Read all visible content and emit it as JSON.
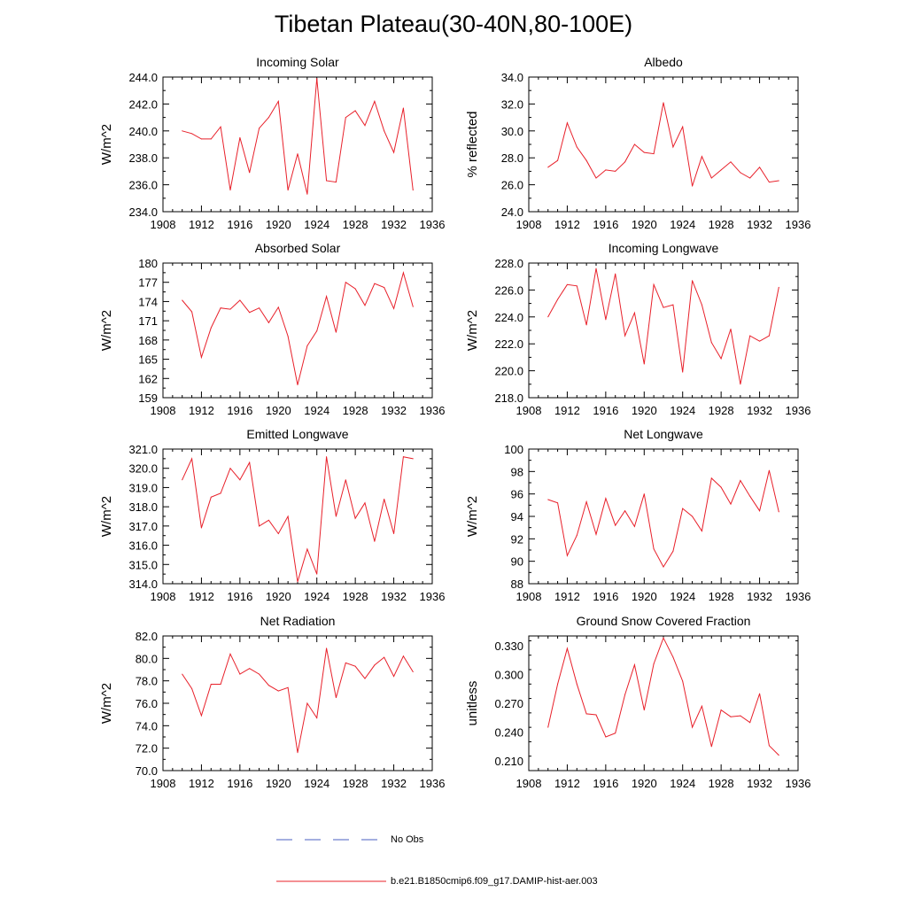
{
  "title": "Tibetan Plateau(30-40N,80-100E)",
  "legend": [
    {
      "label": "No Obs",
      "color": "#4a5fc1",
      "style": "dashed"
    },
    {
      "label": "b.e21.B1850cmip6.f09_g17.DAMIP-hist-aer.003",
      "color": "#e8202a",
      "style": "solid"
    }
  ],
  "chart_data": [
    {
      "type": "line",
      "title": "Incoming Solar",
      "ylabel": "W/m^2",
      "xlim": [
        1908,
        1936
      ],
      "xticks": [
        1908,
        1912,
        1916,
        1920,
        1924,
        1928,
        1932,
        1936
      ],
      "ylim": [
        234.0,
        244.0
      ],
      "yticks": [
        "234.0",
        "236.0",
        "238.0",
        "240.0",
        "242.0",
        "244.0"
      ],
      "x": [
        1910,
        1911,
        1912,
        1913,
        1914,
        1915,
        1916,
        1917,
        1918,
        1919,
        1920,
        1921,
        1922,
        1923,
        1924,
        1925,
        1926,
        1927,
        1928,
        1929,
        1930,
        1931,
        1932,
        1933,
        1934
      ],
      "series": [
        {
          "name": "b.e21.B1850cmip6.f09_g17.DAMIP-hist-aer.003",
          "values": [
            240.0,
            239.8,
            239.4,
            239.4,
            240.3,
            235.6,
            239.5,
            236.9,
            240.2,
            241.0,
            242.2,
            235.6,
            238.3,
            235.3,
            243.9,
            236.3,
            236.2,
            241.0,
            241.5,
            240.4,
            242.2,
            240.0,
            238.4,
            241.7,
            235.6
          ]
        }
      ]
    },
    {
      "type": "line",
      "title": "Albedo",
      "ylabel": "% reflected",
      "xlim": [
        1908,
        1936
      ],
      "xticks": [
        1908,
        1912,
        1916,
        1920,
        1924,
        1928,
        1932,
        1936
      ],
      "ylim": [
        24.0,
        34.0
      ],
      "yticks": [
        "24.0",
        "26.0",
        "28.0",
        "30.0",
        "32.0",
        "34.0"
      ],
      "x": [
        1910,
        1911,
        1912,
        1913,
        1914,
        1915,
        1916,
        1917,
        1918,
        1919,
        1920,
        1921,
        1922,
        1923,
        1924,
        1925,
        1926,
        1927,
        1928,
        1929,
        1930,
        1931,
        1932,
        1933,
        1934
      ],
      "series": [
        {
          "name": "b.e21.B1850cmip6.f09_g17.DAMIP-hist-aer.003",
          "values": [
            27.3,
            27.8,
            30.6,
            28.8,
            27.8,
            26.5,
            27.1,
            27.0,
            27.7,
            29.0,
            28.4,
            28.3,
            32.1,
            28.8,
            30.3,
            25.9,
            28.1,
            26.5,
            27.1,
            27.7,
            26.9,
            26.5,
            27.3,
            26.2,
            26.3
          ]
        }
      ]
    },
    {
      "type": "line",
      "title": "Absorbed Solar",
      "ylabel": "W/m^2",
      "xlim": [
        1908,
        1936
      ],
      "xticks": [
        1908,
        1912,
        1916,
        1920,
        1924,
        1928,
        1932,
        1936
      ],
      "ylim": [
        159,
        180
      ],
      "yticks": [
        "159",
        "162",
        "165",
        "168",
        "171",
        "174",
        "177",
        "180"
      ],
      "x": [
        1910,
        1911,
        1912,
        1913,
        1914,
        1915,
        1916,
        1917,
        1918,
        1919,
        1920,
        1921,
        1922,
        1923,
        1924,
        1925,
        1926,
        1927,
        1928,
        1929,
        1930,
        1931,
        1932,
        1933,
        1934
      ],
      "series": [
        {
          "name": "b.e21.B1850cmip6.f09_g17.DAMIP-hist-aer.003",
          "values": [
            174.2,
            172.4,
            165.3,
            169.9,
            173.0,
            172.8,
            174.2,
            172.3,
            173.0,
            170.7,
            173.1,
            168.6,
            161.0,
            167.1,
            169.4,
            174.8,
            169.2,
            177.0,
            176.0,
            173.4,
            176.8,
            176.2,
            172.9,
            178.5,
            173.2
          ]
        }
      ]
    },
    {
      "type": "line",
      "title": "Incoming Longwave",
      "ylabel": "W/m^2",
      "xlim": [
        1908,
        1936
      ],
      "xticks": [
        1908,
        1912,
        1916,
        1920,
        1924,
        1928,
        1932,
        1936
      ],
      "ylim": [
        218.0,
        228.0
      ],
      "yticks": [
        "218.0",
        "220.0",
        "222.0",
        "224.0",
        "226.0",
        "228.0"
      ],
      "x": [
        1910,
        1911,
        1912,
        1913,
        1914,
        1915,
        1916,
        1917,
        1918,
        1919,
        1920,
        1921,
        1922,
        1923,
        1924,
        1925,
        1926,
        1927,
        1928,
        1929,
        1930,
        1931,
        1932,
        1933,
        1934
      ],
      "series": [
        {
          "name": "b.e21.B1850cmip6.f09_g17.DAMIP-hist-aer.003",
          "values": [
            224.0,
            225.3,
            226.4,
            226.3,
            223.4,
            227.6,
            223.8,
            227.2,
            222.6,
            224.3,
            220.5,
            226.4,
            224.7,
            224.9,
            219.9,
            226.7,
            224.9,
            222.1,
            220.9,
            223.1,
            219.0,
            222.6,
            222.2,
            222.6,
            226.2
          ]
        }
      ]
    },
    {
      "type": "line",
      "title": "Emitted Longwave",
      "ylabel": "W/m^2",
      "xlim": [
        1908,
        1936
      ],
      "xticks": [
        1908,
        1912,
        1916,
        1920,
        1924,
        1928,
        1932,
        1936
      ],
      "ylim": [
        314.0,
        321.0
      ],
      "yticks": [
        "314.0",
        "315.0",
        "316.0",
        "317.0",
        "318.0",
        "319.0",
        "320.0",
        "321.0"
      ],
      "x": [
        1910,
        1911,
        1912,
        1913,
        1914,
        1915,
        1916,
        1917,
        1918,
        1919,
        1920,
        1921,
        1922,
        1923,
        1924,
        1925,
        1926,
        1927,
        1928,
        1929,
        1930,
        1931,
        1932,
        1933,
        1934
      ],
      "series": [
        {
          "name": "b.e21.B1850cmip6.f09_g17.DAMIP-hist-aer.003",
          "values": [
            319.4,
            320.5,
            316.9,
            318.5,
            318.7,
            320.0,
            319.4,
            320.3,
            317.0,
            317.3,
            316.6,
            317.5,
            314.1,
            315.8,
            314.5,
            320.6,
            317.5,
            319.4,
            317.4,
            318.2,
            316.2,
            318.4,
            316.6,
            320.6,
            320.5
          ]
        }
      ]
    },
    {
      "type": "line",
      "title": "Net Longwave",
      "ylabel": "W/m^2",
      "xlim": [
        1908,
        1936
      ],
      "xticks": [
        1908,
        1912,
        1916,
        1920,
        1924,
        1928,
        1932,
        1936
      ],
      "ylim": [
        88,
        100
      ],
      "yticks": [
        "88",
        "90",
        "92",
        "94",
        "96",
        "98",
        "100"
      ],
      "x": [
        1910,
        1911,
        1912,
        1913,
        1914,
        1915,
        1916,
        1917,
        1918,
        1919,
        1920,
        1921,
        1922,
        1923,
        1924,
        1925,
        1926,
        1927,
        1928,
        1929,
        1930,
        1931,
        1932,
        1933,
        1934
      ],
      "series": [
        {
          "name": "b.e21.B1850cmip6.f09_g17.DAMIP-hist-aer.003",
          "values": [
            95.5,
            95.2,
            90.5,
            92.3,
            95.3,
            92.4,
            95.6,
            93.2,
            94.5,
            93.1,
            96.0,
            91.1,
            89.5,
            90.9,
            94.7,
            94.0,
            92.7,
            97.4,
            96.6,
            95.1,
            97.2,
            95.8,
            94.5,
            98.1,
            94.4
          ]
        }
      ]
    },
    {
      "type": "line",
      "title": "Net Radiation",
      "ylabel": "W/m^2",
      "xlim": [
        1908,
        1936
      ],
      "xticks": [
        1908,
        1912,
        1916,
        1920,
        1924,
        1928,
        1932,
        1936
      ],
      "ylim": [
        70.0,
        82.0
      ],
      "yticks": [
        "70.0",
        "72.0",
        "74.0",
        "76.0",
        "78.0",
        "80.0",
        "82.0"
      ],
      "x": [
        1910,
        1911,
        1912,
        1913,
        1914,
        1915,
        1916,
        1917,
        1918,
        1919,
        1920,
        1921,
        1922,
        1923,
        1924,
        1925,
        1926,
        1927,
        1928,
        1929,
        1930,
        1931,
        1932,
        1933,
        1934
      ],
      "series": [
        {
          "name": "b.e21.B1850cmip6.f09_g17.DAMIP-hist-aer.003",
          "values": [
            78.6,
            77.3,
            74.9,
            77.7,
            77.7,
            80.4,
            78.6,
            79.1,
            78.6,
            77.6,
            77.1,
            77.4,
            71.6,
            76.0,
            74.7,
            80.9,
            76.5,
            79.6,
            79.3,
            78.2,
            79.4,
            80.1,
            78.4,
            80.2,
            78.8
          ]
        }
      ]
    },
    {
      "type": "line",
      "title": "Ground Snow Covered Fraction",
      "ylabel": "unitless",
      "xlim": [
        1908,
        1936
      ],
      "xticks": [
        1908,
        1912,
        1916,
        1920,
        1924,
        1928,
        1932,
        1936
      ],
      "ylim": [
        0.2,
        0.34
      ],
      "yticks": [
        "0.210",
        "0.240",
        "0.270",
        "0.300",
        "0.330"
      ],
      "yticks_at": [
        0.21,
        0.24,
        0.27,
        0.3,
        0.33
      ],
      "x": [
        1910,
        1911,
        1912,
        1913,
        1914,
        1915,
        1916,
        1917,
        1918,
        1919,
        1920,
        1921,
        1922,
        1923,
        1924,
        1925,
        1926,
        1927,
        1928,
        1929,
        1930,
        1931,
        1932,
        1933,
        1934
      ],
      "series": [
        {
          "name": "b.e21.B1850cmip6.f09_g17.DAMIP-hist-aer.003",
          "values": [
            0.245,
            0.29,
            0.327,
            0.29,
            0.259,
            0.258,
            0.235,
            0.239,
            0.279,
            0.31,
            0.263,
            0.311,
            0.338,
            0.318,
            0.293,
            0.245,
            0.267,
            0.225,
            0.263,
            0.256,
            0.257,
            0.25,
            0.28,
            0.226,
            0.216
          ]
        }
      ]
    }
  ]
}
